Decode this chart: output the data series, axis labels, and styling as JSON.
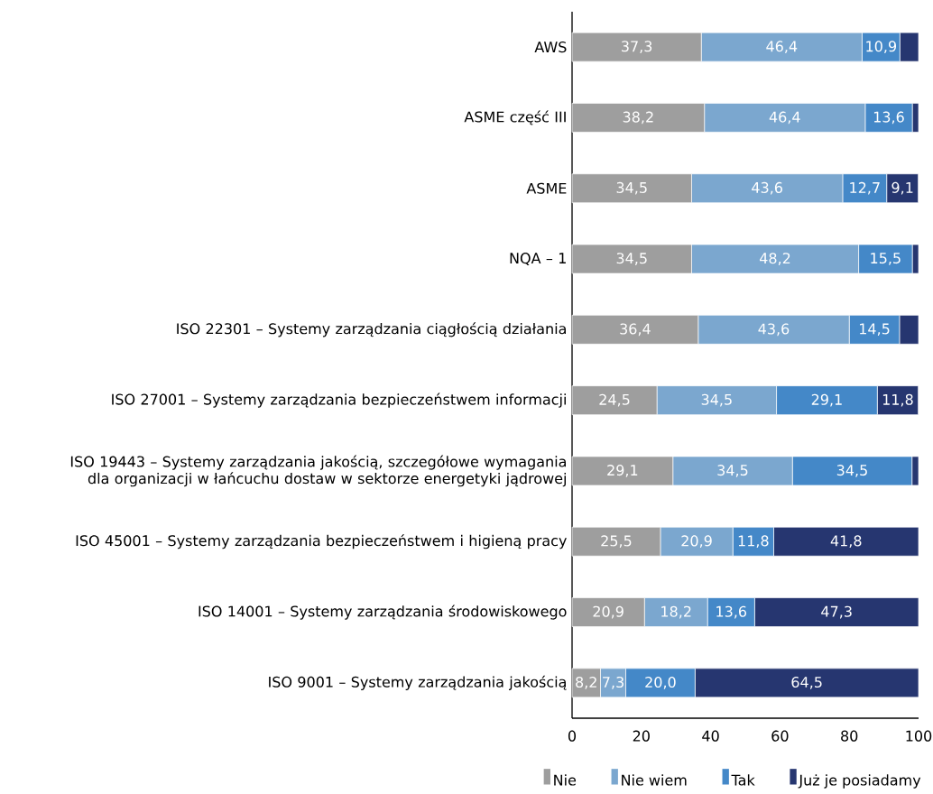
{
  "chart_data": {
    "type": "bar",
    "orientation": "horizontal",
    "stacked": true,
    "categories": [
      "AWS",
      "ASME część III",
      "ASME",
      "NQA – 1",
      "ISO 22301 – Systemy zarządzania ciągłością działania",
      "ISO 27001 – Systemy zarządzania bezpieczeństwem informacji",
      "ISO 19443 – Systemy zarządzania jakością, szczegółowe wymagania dla organizacji w łańcuchu dostaw w sektorze energetyki jądrowej",
      "ISO 45001 – Systemy zarządzania bezpieczeństwem i higieną pracy",
      "ISO 14001 – Systemy zarządzania środowiskowego",
      "ISO 9001 – Systemy zarządzania jakością"
    ],
    "series": [
      {
        "name": "Nie",
        "color": "#9e9e9e",
        "values": [
          37.3,
          38.2,
          34.5,
          34.5,
          36.4,
          24.5,
          29.1,
          25.5,
          20.9,
          8.2
        ],
        "value_labels": [
          "37,3",
          "38,2",
          "34,5",
          "34,5",
          "36,4",
          "24,5",
          "29,1",
          "25,5",
          "20,9",
          "8,2"
        ]
      },
      {
        "name": "Nie wiem",
        "color": "#7ba7cf",
        "values": [
          46.4,
          46.4,
          43.6,
          48.2,
          43.6,
          34.5,
          34.5,
          20.9,
          18.2,
          7.3
        ],
        "value_labels": [
          "46,4",
          "46,4",
          "43,6",
          "48,2",
          "43,6",
          "34,5",
          "34,5",
          "20,9",
          "18,2",
          "7,3"
        ]
      },
      {
        "name": "Tak",
        "color": "#4488c8",
        "values": [
          10.9,
          13.6,
          12.7,
          15.5,
          14.5,
          29.1,
          34.5,
          11.8,
          13.6,
          20.0
        ],
        "value_labels": [
          "10,9",
          "13,6",
          "12,7",
          "15,5",
          "14,5",
          "29,1",
          "34,5",
          "11,8",
          "13,6",
          "20,0"
        ]
      },
      {
        "name": "Już je posiadamy",
        "color": "#263670",
        "values": [
          5.4,
          1.8,
          9.1,
          1.8,
          5.5,
          11.8,
          1.9,
          41.8,
          47.3,
          64.5
        ],
        "value_labels": [
          null,
          null,
          "9,1",
          null,
          null,
          "11,8",
          null,
          "41,8",
          "47,3",
          "64,5"
        ]
      }
    ],
    "xlim": [
      0,
      100
    ],
    "xticks": [
      0,
      20,
      40,
      60,
      80,
      100
    ],
    "legend": "bottom right"
  }
}
